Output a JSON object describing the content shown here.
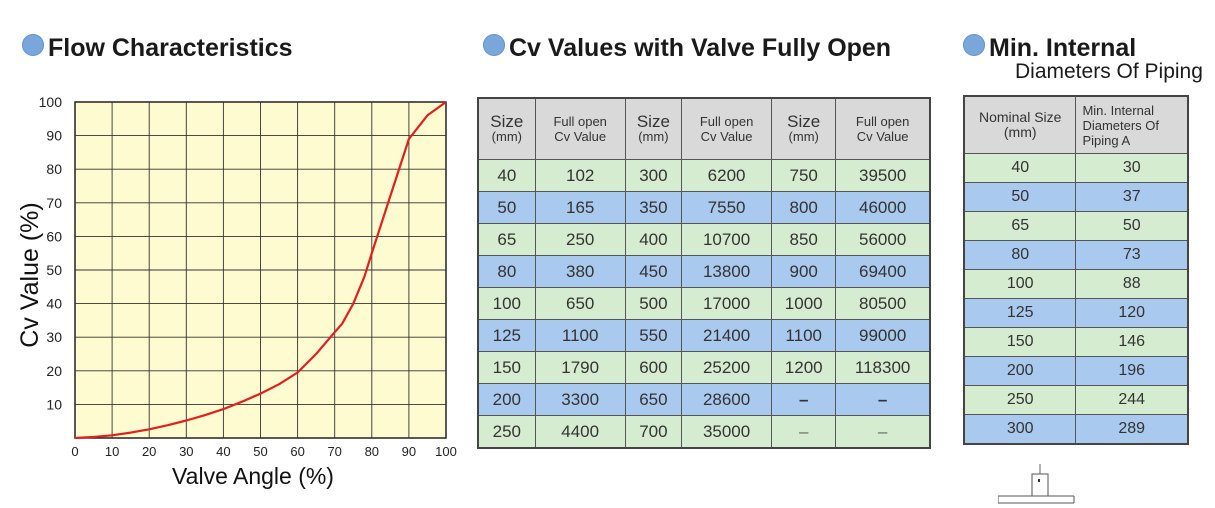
{
  "flow_section": {
    "title": "Flow Characteristics"
  },
  "cv_section": {
    "title": "Cv Values with Valve Fully Open"
  },
  "pipe_section": {
    "title_line1": "Min. Internal",
    "title_line2": "Diameters Of  Piping"
  },
  "chart_data": {
    "type": "line",
    "title": "Flow Characteristics",
    "xlabel": "Valve  Angle (%)",
    "ylabel": "Cv  Value  (%)",
    "xlim": [
      0,
      100
    ],
    "ylim": [
      0,
      100
    ],
    "x_ticks": [
      "0",
      "10",
      "20",
      "30",
      "40",
      "50",
      "60",
      "70",
      "80",
      "90",
      "100"
    ],
    "y_ticks": [
      "10",
      "20",
      "30",
      "40",
      "50",
      "60",
      "70",
      "80",
      "90",
      "100"
    ],
    "grid": true,
    "background_color": "#fdfbcf",
    "line_color": "#e02020",
    "series": [
      {
        "x": [
          0,
          5,
          10,
          15,
          20,
          25,
          30,
          35,
          40,
          45,
          50,
          55,
          60,
          65,
          70,
          72,
          75,
          78,
          80,
          85,
          90,
          95,
          100
        ],
        "y": [
          0,
          0.3,
          0.8,
          1.6,
          2.6,
          3.8,
          5.2,
          6.8,
          8.6,
          10.8,
          13.2,
          16,
          19.5,
          25,
          31.5,
          34,
          40,
          48,
          55,
          72,
          89,
          96,
          100
        ]
      }
    ]
  },
  "cv_table": {
    "headers": [
      {
        "main": "Size",
        "sub": "(mm)"
      },
      {
        "main": "Full open",
        "sub": "Cv Value"
      },
      {
        "main": "Size",
        "sub": "(mm)"
      },
      {
        "main": "Full open",
        "sub": "Cv Value"
      },
      {
        "main": "Size",
        "sub": "(mm)"
      },
      {
        "main": "Full open",
        "sub": "Cv Value"
      }
    ],
    "rows": [
      [
        "40",
        "102",
        "300",
        "6200",
        "750",
        "39500"
      ],
      [
        "50",
        "165",
        "350",
        "7550",
        "800",
        "46000"
      ],
      [
        "65",
        "250",
        "400",
        "10700",
        "850",
        "56000"
      ],
      [
        "80",
        "380",
        "450",
        "13800",
        "900",
        "69400"
      ],
      [
        "100",
        "650",
        "500",
        "17000",
        "1000",
        "80500"
      ],
      [
        "125",
        "1100",
        "550",
        "21400",
        "1100",
        "99000"
      ],
      [
        "150",
        "1790",
        "600",
        "25200",
        "1200",
        "118300"
      ],
      [
        "200",
        "3300",
        "650",
        "28600",
        "–",
        "–"
      ],
      [
        "250",
        "4400",
        "700",
        "35000",
        "–",
        "–"
      ]
    ]
  },
  "pipe_table": {
    "header_left_1": "Nominal Size",
    "header_left_2": "(mm)",
    "header_right_1": "Min. Internal",
    "header_right_2": "Diameters Of",
    "header_right_3": "Piping A",
    "rows": [
      [
        "40",
        "30"
      ],
      [
        "50",
        "37"
      ],
      [
        "65",
        "50"
      ],
      [
        "80",
        "73"
      ],
      [
        "100",
        "88"
      ],
      [
        "125",
        "120"
      ],
      [
        "150",
        "146"
      ],
      [
        "200",
        "196"
      ],
      [
        "250",
        "244"
      ],
      [
        "300",
        "289"
      ]
    ]
  },
  "colors": {
    "row_green": "#d6ecd0",
    "row_blue": "#a9c9ee",
    "header_gray": "#d9d9d9",
    "bullet_blue": "#7aa6db"
  }
}
